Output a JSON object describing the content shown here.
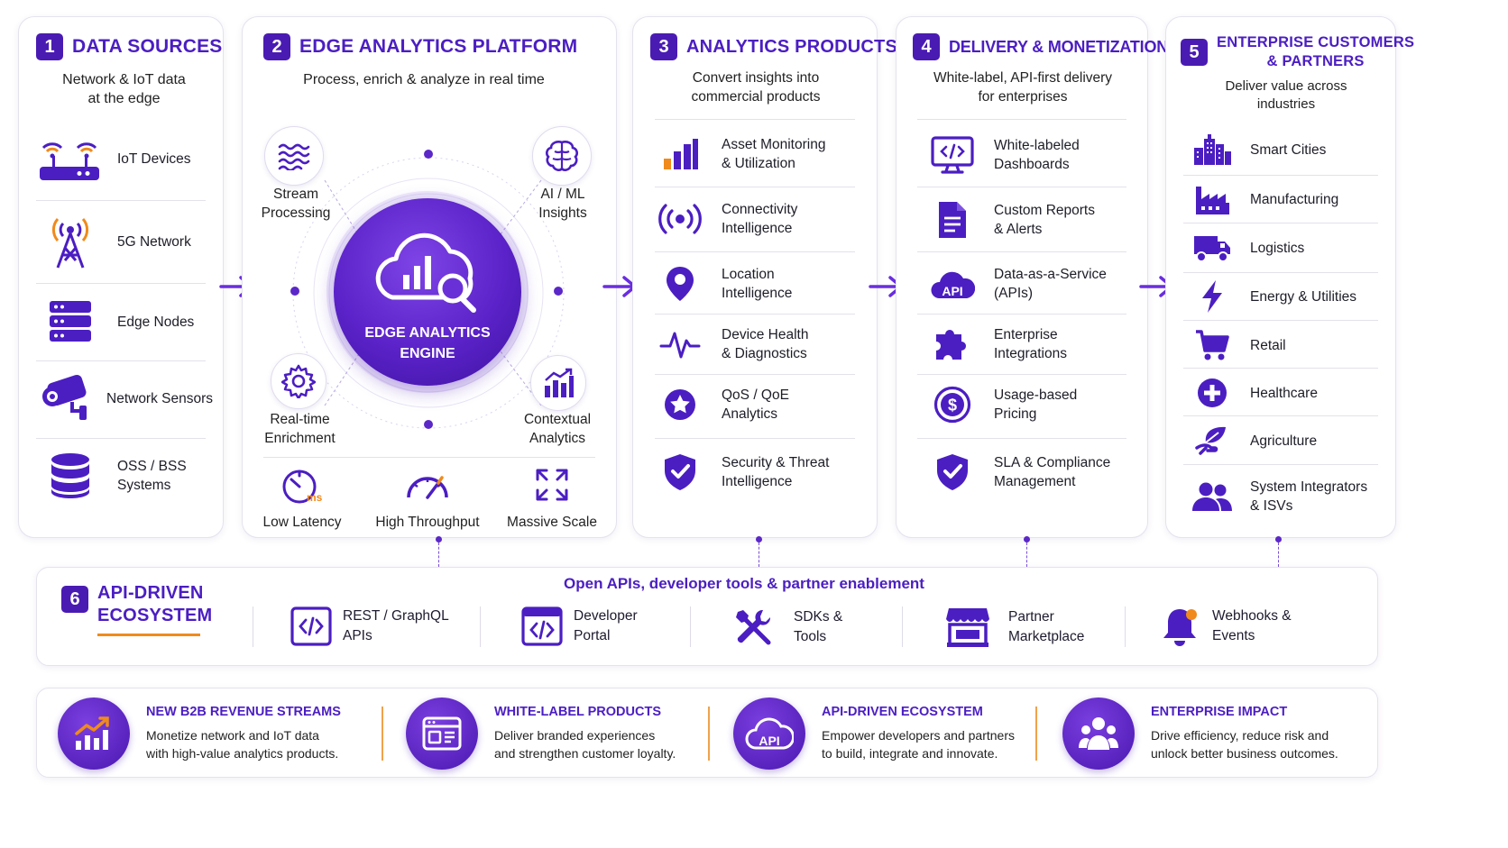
{
  "colors": {
    "brand": "#4b1ec2",
    "accent_orange": "#f08a1c",
    "dark_navy": "#2a1a6e"
  },
  "s1": {
    "num": "1",
    "title": "DATA SOURCES",
    "subtitle": "Network & IoT data\nat the edge",
    "items": [
      {
        "label": "IoT Devices",
        "icon": "router-wifi-icon"
      },
      {
        "label": "5G Network",
        "icon": "cell-tower-icon"
      },
      {
        "label": "Edge Nodes",
        "icon": "server-rack-icon"
      },
      {
        "label": "Network Sensors",
        "icon": "security-camera-icon"
      },
      {
        "label": "OSS / BSS\nSystems",
        "icon": "database-icon"
      }
    ]
  },
  "s2": {
    "num": "2",
    "title": "EDGE ANALYTICS PLATFORM",
    "subtitle": "Process, enrich & analyze in real time",
    "engine": "EDGE ANALYTICS\nENGINE",
    "nodes": [
      {
        "label": "Stream\nProcessing",
        "icon": "waves-icon"
      },
      {
        "label": "AI / ML\nInsights",
        "icon": "brain-icon"
      },
      {
        "label": "Real-time\nEnrichment",
        "icon": "gear-icon"
      },
      {
        "label": "Contextual\nAnalytics",
        "icon": "bar-chart-up-icon"
      }
    ],
    "features": [
      {
        "label": "Low Latency",
        "icon": "timer-ms-icon"
      },
      {
        "label": "High Throughput",
        "icon": "speedometer-icon"
      },
      {
        "label": "Massive Scale",
        "icon": "expand-arrows-icon"
      }
    ]
  },
  "s3": {
    "num": "3",
    "title": "ANALYTICS PRODUCTS",
    "subtitle": "Convert insights into\ncommercial products",
    "items": [
      {
        "label": "Asset Monitoring\n& Utilization",
        "icon": "bar-chart-icon"
      },
      {
        "label": "Connectivity\nIntelligence",
        "icon": "signal-broadcast-icon"
      },
      {
        "label": "Location\nIntelligence",
        "icon": "map-pin-icon"
      },
      {
        "label": "Device Health\n& Diagnostics",
        "icon": "pulse-icon"
      },
      {
        "label": "QoS / QoE\nAnalytics",
        "icon": "star-badge-icon"
      },
      {
        "label": "Security & Threat\nIntelligence",
        "icon": "shield-check-icon"
      }
    ]
  },
  "s4": {
    "num": "4",
    "title": "DELIVERY & MONETIZATION",
    "subtitle": "White-label, API-first delivery\nfor enterprises",
    "items": [
      {
        "label": "White-labeled\nDashboards",
        "icon": "monitor-code-icon"
      },
      {
        "label": "Custom Reports\n& Alerts",
        "icon": "document-icon"
      },
      {
        "label": "Data-as-a-Service\n(APIs)",
        "icon": "api-cloud-icon",
        "icon_text": "API"
      },
      {
        "label": "Enterprise\nIntegrations",
        "icon": "puzzle-icon"
      },
      {
        "label": "Usage-based\nPricing",
        "icon": "dollar-coin-icon"
      },
      {
        "label": "SLA & Compliance\nManagement",
        "icon": "shield-check-icon"
      }
    ]
  },
  "s5": {
    "num": "5",
    "title": "ENTERPRISE CUSTOMERS\n& PARTNERS",
    "subtitle": "Deliver value across\nindustries",
    "items": [
      {
        "label": "Smart Cities",
        "icon": "city-buildings-icon"
      },
      {
        "label": "Manufacturing",
        "icon": "factory-icon"
      },
      {
        "label": "Logistics",
        "icon": "truck-icon"
      },
      {
        "label": "Energy & Utilities",
        "icon": "lightning-icon"
      },
      {
        "label": "Retail",
        "icon": "shopping-cart-icon"
      },
      {
        "label": "Healthcare",
        "icon": "medical-cross-icon"
      },
      {
        "label": "Agriculture",
        "icon": "leaf-hand-icon"
      },
      {
        "label": "System Integrators\n& ISVs",
        "icon": "users-icon"
      }
    ]
  },
  "s6": {
    "num": "6",
    "title": "API-DRIVEN\nECOSYSTEM",
    "subtitle": "Open APIs, developer tools & partner enablement",
    "items": [
      {
        "label": "REST / GraphQL\nAPIs",
        "icon": "code-brackets-icon"
      },
      {
        "label": "Developer\nPortal",
        "icon": "browser-code-icon"
      },
      {
        "label": "SDKs &\nTools",
        "icon": "tools-icon"
      },
      {
        "label": "Partner\nMarketplace",
        "icon": "storefront-icon"
      },
      {
        "label": "Webhooks &\nEvents",
        "icon": "bell-icon"
      }
    ]
  },
  "benefits": [
    {
      "title": "NEW B2B REVENUE STREAMS",
      "desc": "Monetize network and IoT data\nwith high-value analytics products.",
      "icon": "growth-chart-icon"
    },
    {
      "title": "WHITE-LABEL PRODUCTS",
      "desc": "Deliver branded experiences\nand strengthen customer loyalty.",
      "icon": "browser-window-icon"
    },
    {
      "title": "API-DRIVEN ECOSYSTEM",
      "desc": "Empower developers and partners\nto build, integrate and innovate.",
      "icon": "api-cloud-icon",
      "icon_text": "API"
    },
    {
      "title": "ENTERPRISE IMPACT",
      "desc": "Drive efficiency, reduce risk and\nunlock better business outcomes.",
      "icon": "team-icon"
    }
  ]
}
